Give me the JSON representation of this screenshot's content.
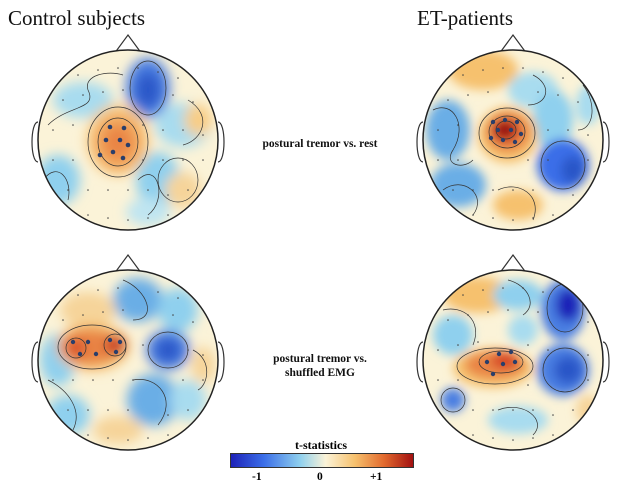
{
  "columns": {
    "left": "Control subjects",
    "right": "ET-patients"
  },
  "rows": [
    {
      "label_line1": "postural tremor  vs. rest",
      "label_line2": ""
    },
    {
      "label_line1": "postural tremor vs.",
      "label_line2": "shuffled EMG"
    }
  ],
  "colorbar": {
    "title": "t-statistics",
    "ticks": [
      "-1",
      "0",
      "+1"
    ],
    "colors": {
      "min": "#1d22b8",
      "neutral": "#fbf3d8",
      "max": "#a21010"
    }
  },
  "maps": {
    "control_top": {
      "highlight": "left-central",
      "cluster_dots": 8
    },
    "et_top": {
      "highlight": "left-central",
      "cluster_dots": 9
    },
    "control_bottom": {
      "highlight": "left-central",
      "cluster_dots": 7
    },
    "et_bottom": {
      "highlight": "left-central",
      "cluster_dots": 6
    }
  }
}
